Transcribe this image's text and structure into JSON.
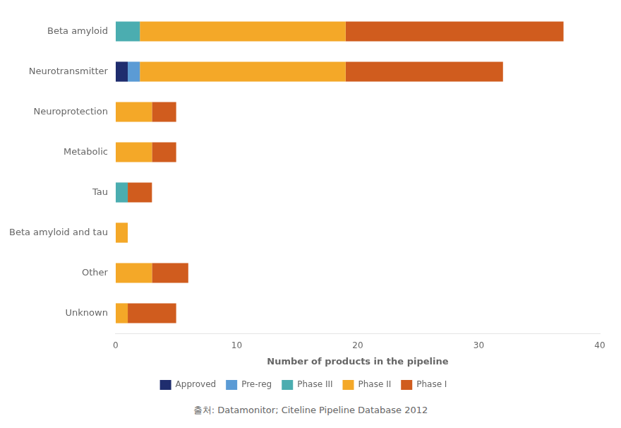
{
  "chart_data": {
    "type": "bar",
    "orientation": "horizontal",
    "stacked": true,
    "categories": [
      "Beta amyloid",
      "Neurotransmitter",
      "Neuroprotection",
      "Metabolic",
      "Tau",
      "Beta amyloid and tau",
      "Other",
      "Unknown"
    ],
    "series": [
      {
        "name": "Approved",
        "color": "#1f2d6e",
        "values": [
          0,
          1,
          0,
          0,
          0,
          0,
          0,
          0
        ]
      },
      {
        "name": "Pre-reg",
        "color": "#5b9bd5",
        "values": [
          0,
          1,
          0,
          0,
          0,
          0,
          0,
          0
        ]
      },
      {
        "name": "Phase III",
        "color": "#4badb0",
        "values": [
          2,
          0,
          0,
          0,
          1,
          0,
          0,
          0
        ]
      },
      {
        "name": "Phase II",
        "color": "#f4a828",
        "values": [
          17,
          17,
          3,
          3,
          0,
          1,
          3,
          1
        ]
      },
      {
        "name": "Phase I",
        "color": "#d05c1e",
        "values": [
          18,
          13,
          2,
          2,
          2,
          0,
          3,
          4
        ]
      }
    ],
    "xlabel": "Number of products in the pipeline",
    "xlim": [
      0,
      40
    ],
    "xticks": [
      0,
      10,
      20,
      30,
      40
    ],
    "grid": false,
    "legend": "bottom",
    "footnote": "출처: Datamonitor; Citeline Pipeline Database 2012"
  }
}
